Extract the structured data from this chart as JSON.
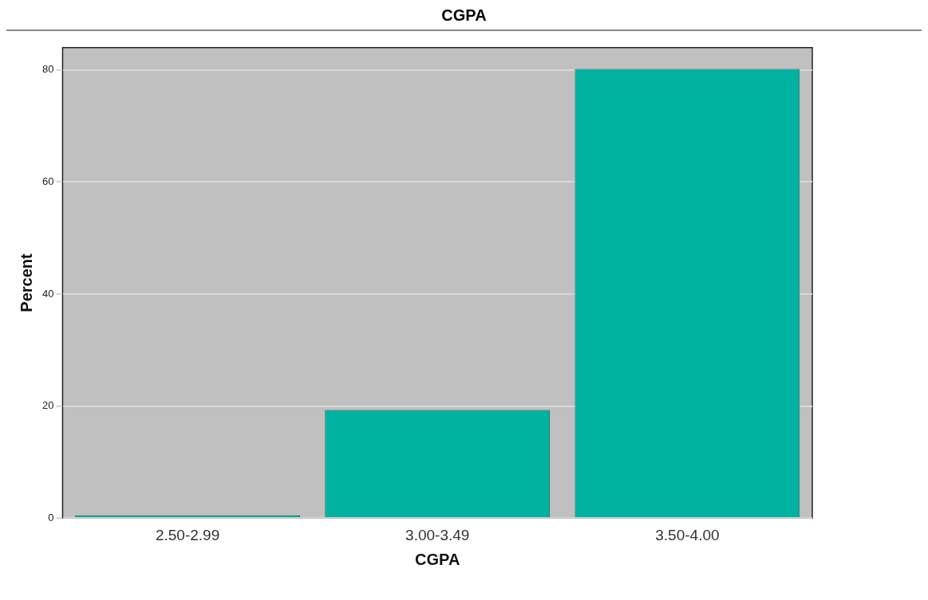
{
  "chart_data": {
    "type": "bar",
    "title": "CGPA",
    "xlabel": "CGPA",
    "ylabel": "Percent",
    "categories": [
      "2.50-2.99",
      "3.00-3.49",
      "3.50-4.00"
    ],
    "values": [
      0.5,
      19.3,
      80.2
    ],
    "color": "#00b2a0",
    "ylim": [
      0,
      84
    ],
    "yticks": [
      0,
      20,
      40,
      60,
      80
    ],
    "grid": "y",
    "legend": false
  }
}
